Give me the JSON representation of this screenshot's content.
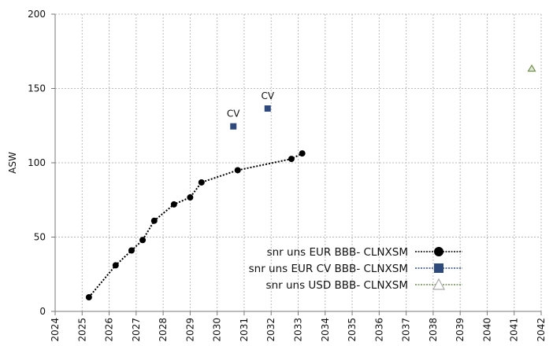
{
  "chart_data": {
    "type": "scatter",
    "ylabel": "ASW",
    "xlim": [
      2024,
      2042
    ],
    "xticks": [
      2024,
      2025,
      2026,
      2027,
      2028,
      2029,
      2030,
      2031,
      2032,
      2033,
      2034,
      2035,
      2036,
      2037,
      2038,
      2039,
      2040,
      2041,
      2042
    ],
    "ylim": [
      0,
      200
    ],
    "yticks": [
      0,
      50,
      100,
      150,
      200
    ],
    "grid": true,
    "legend": "bottom-center",
    "series": [
      {
        "name": "snr uns EUR BBB- CLNXSM",
        "color": "#000000",
        "marker": "circle",
        "line": true,
        "x": [
          2025.25,
          2026.24,
          2026.83,
          2027.24,
          2027.67,
          2028.4,
          2029.0,
          2029.42,
          2030.76,
          2032.75,
          2033.15
        ],
        "values": [
          9.5,
          31,
          41,
          48,
          61,
          72,
          76.7,
          86.8,
          95,
          102.6,
          106.3
        ]
      },
      {
        "name": "snr uns EUR CV BBB- CLNXSM",
        "color": "#2e4a7d",
        "marker": "square",
        "line": false,
        "x": [
          2030.6,
          2031.87
        ],
        "values": [
          124.5,
          136.5
        ],
        "labels": [
          "CV",
          "CV"
        ]
      },
      {
        "name": "snr uns USD BBB- CLNXSM",
        "color": "#6f8f4f",
        "marker": "triangle",
        "line": false,
        "x": [
          2041.65
        ],
        "values": [
          163.5
        ]
      }
    ]
  }
}
